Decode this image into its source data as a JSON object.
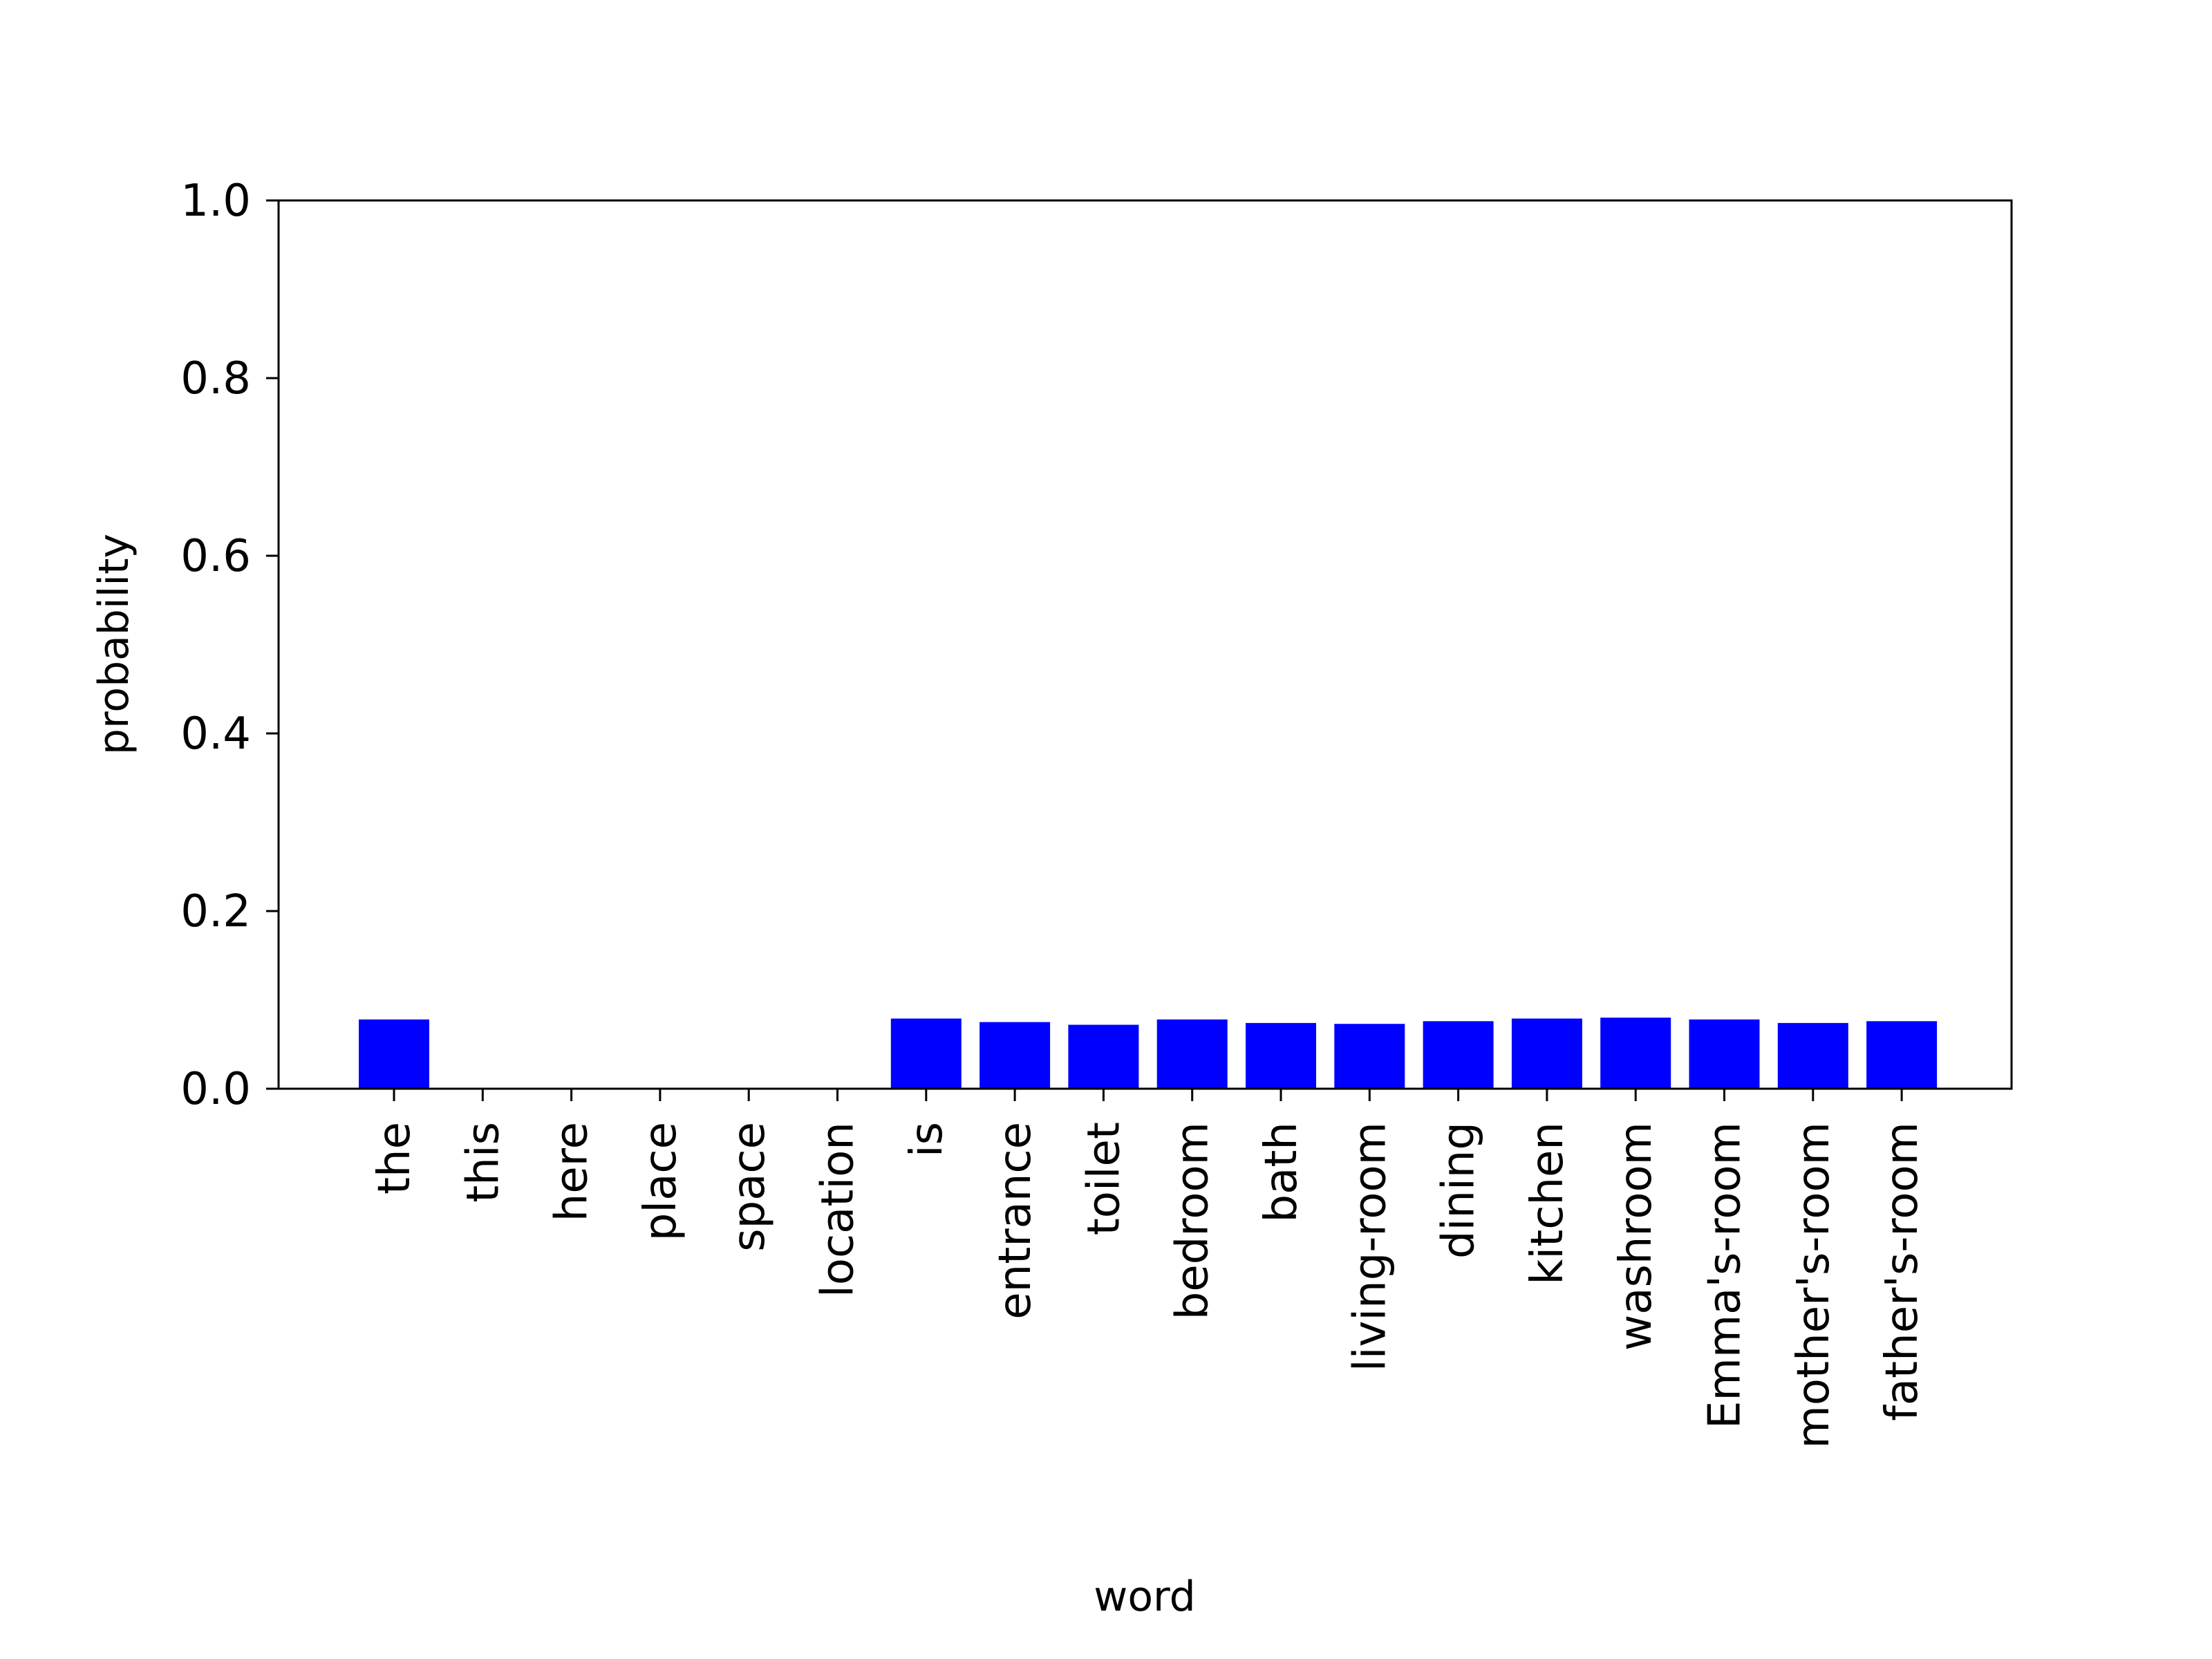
{
  "chart_data": {
    "type": "bar",
    "title": "",
    "xlabel": "word",
    "ylabel": "probability",
    "ylim": [
      0.0,
      1.0
    ],
    "yticks": [
      "0.0",
      "0.2",
      "0.4",
      "0.6",
      "0.8",
      "1.0"
    ],
    "grid": false,
    "categories": [
      "the",
      "this",
      "here",
      "place",
      "space",
      "location",
      "is",
      "entrance",
      "toilet",
      "bedroom",
      "bath",
      "living-room",
      "dining",
      "kitchen",
      "washroom",
      "Emma's-room",
      "mother's-room",
      "father's-room"
    ],
    "values": [
      0.078,
      0.0,
      0.0,
      0.0,
      0.0,
      0.0,
      0.079,
      0.075,
      0.072,
      0.078,
      0.074,
      0.073,
      0.076,
      0.079,
      0.08,
      0.078,
      0.074,
      0.076
    ],
    "bar_color": "#0000ff"
  }
}
